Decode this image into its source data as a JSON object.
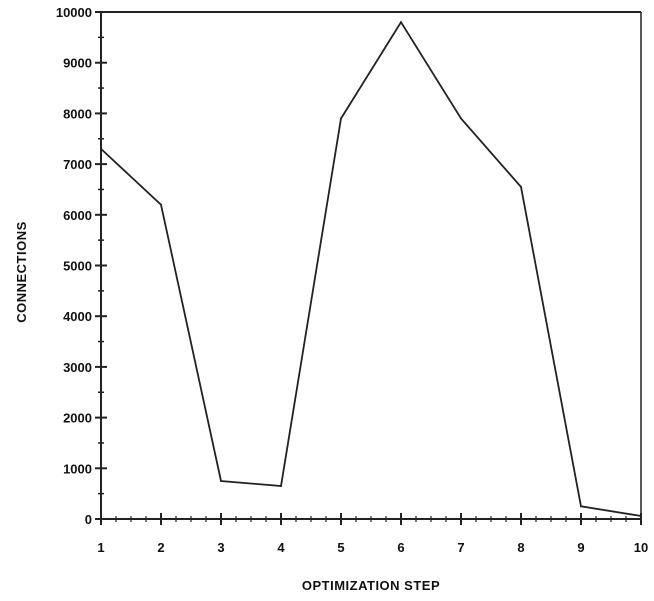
{
  "chart_data": {
    "type": "line",
    "title": "",
    "xlabel": "OPTIMIZATION STEP",
    "ylabel": "CONNECTIONS",
    "x": [
      1,
      2,
      3,
      4,
      5,
      6,
      7,
      8,
      9,
      10
    ],
    "series": [
      {
        "values": [
          7300,
          6200,
          750,
          650,
          7900,
          9800,
          7900,
          6550,
          250,
          60
        ]
      }
    ],
    "xlim": [
      1,
      10
    ],
    "ylim": [
      0,
      10000
    ],
    "xticks": [
      "1",
      "2",
      "3",
      "4",
      "5",
      "6",
      "7",
      "8",
      "9",
      "10"
    ],
    "yticks": [
      "0",
      "1000",
      "2000",
      "3000",
      "4000",
      "5000",
      "6000",
      "7000",
      "8000",
      "9000",
      "10000"
    ],
    "grid": false,
    "legend": "none",
    "colors": {
      "line": "#222222",
      "axis": "#222222"
    }
  }
}
